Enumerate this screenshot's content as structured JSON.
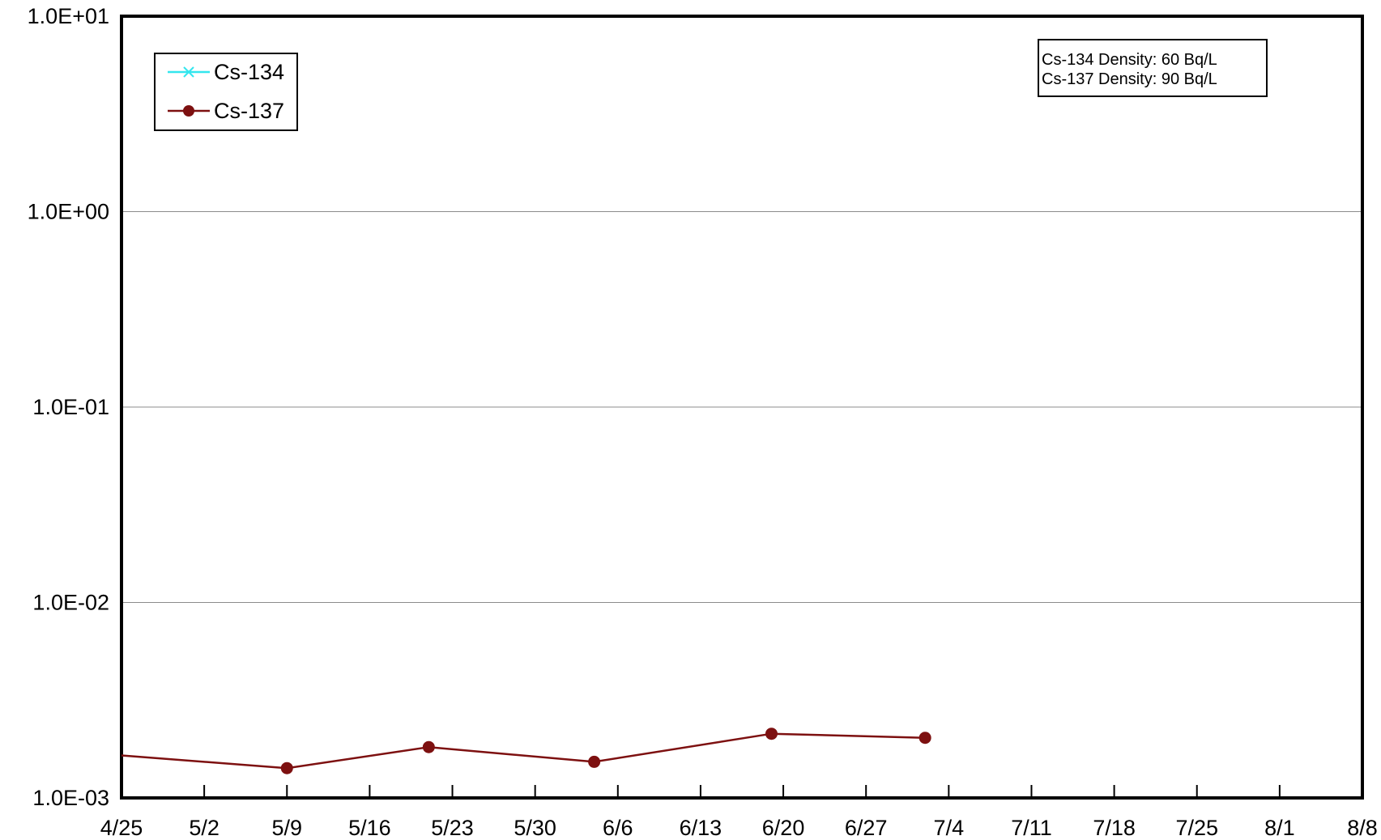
{
  "chart_data": {
    "type": "line",
    "title": "",
    "xlabel": "",
    "ylabel": "",
    "x_axis": {
      "type": "date",
      "range": [
        "2011-04-25",
        "2011-08-08"
      ],
      "tick_interval_days": 7,
      "tick_labels": [
        "4/25",
        "5/2",
        "5/9",
        "5/16",
        "5/23",
        "5/30",
        "6/6",
        "6/13",
        "6/20",
        "6/27",
        "7/4",
        "7/11",
        "7/18",
        "7/25",
        "8/1",
        "8/8"
      ]
    },
    "y_axis": {
      "scale": "log",
      "range": [
        0.001,
        10
      ],
      "tick_values": [
        0.001,
        0.01,
        0.1,
        1,
        10
      ],
      "tick_labels": [
        "1.0E-03",
        "1.0E-02",
        "1.0E-01",
        "1.0E+00",
        "1.0E+01"
      ]
    },
    "grid": {
      "horizontal": true,
      "vertical": false
    },
    "legend": {
      "position": "top-left",
      "entries": [
        "Cs-134",
        "Cs-137"
      ]
    },
    "series": [
      {
        "name": "Cs-134",
        "color": "#33e6ee",
        "marker": "x",
        "points": []
      },
      {
        "name": "Cs-137",
        "color": "#7d1010",
        "marker": "circle",
        "points": [
          {
            "x": "2011-04-25",
            "y": 0.00165
          },
          {
            "x": "2011-05-09",
            "y": 0.00142
          },
          {
            "x": "2011-05-21",
            "y": 0.00182
          },
          {
            "x": "2011-06-04",
            "y": 0.00153
          },
          {
            "x": "2011-06-19",
            "y": 0.00213
          },
          {
            "x": "2011-07-02",
            "y": 0.00203
          }
        ],
        "first_point_marker": false
      }
    ],
    "annotation": {
      "lines": [
        "Cs-134 Density: 60 Bq/L",
        "Cs-137 Density: 90 Bq/L"
      ],
      "position": "top-right"
    }
  }
}
